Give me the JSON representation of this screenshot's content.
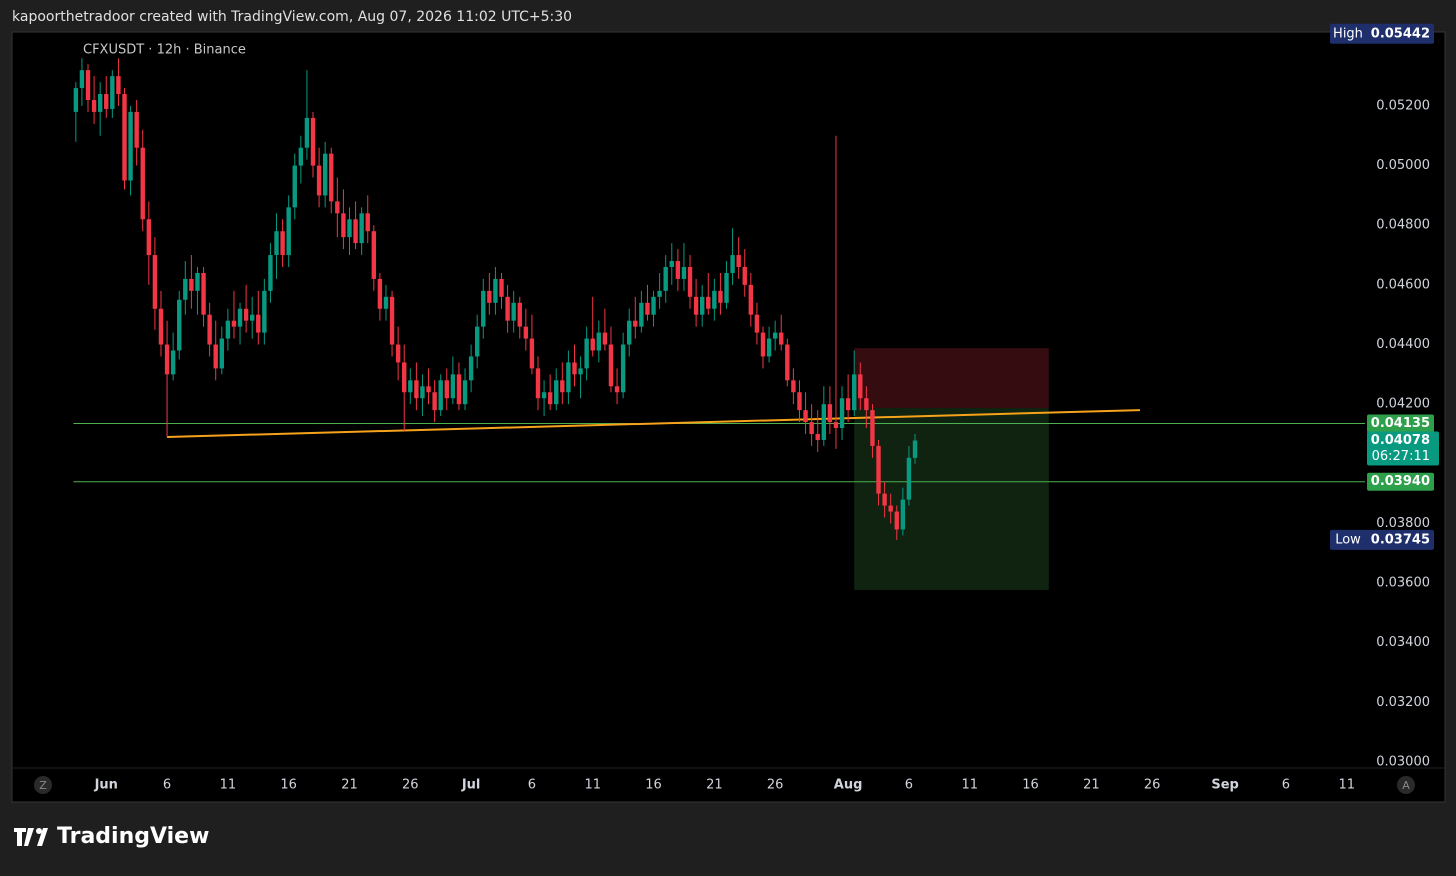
{
  "header": "kapoorthetradoor created with TradingView.com, Aug 07, 2026 11:02 UTC+5:30",
  "footer": "TradingView",
  "chart_data": {
    "type": "candlestick",
    "title": "CFXUSDT · 12h · Binance",
    "up_color": "#089981",
    "down_color": "#f23645",
    "xlim": [
      -10.5,
      212
    ],
    "ylim": [
      0.0298,
      0.05448
    ],
    "xticks": [
      {
        "value": 5,
        "label": "Jun"
      },
      {
        "value": 15,
        "label": "6"
      },
      {
        "value": 25,
        "label": "11"
      },
      {
        "value": 35,
        "label": "16"
      },
      {
        "value": 45,
        "label": "21"
      },
      {
        "value": 55,
        "label": "26"
      },
      {
        "value": 65,
        "label": "Jul"
      },
      {
        "value": 75,
        "label": "6"
      },
      {
        "value": 85,
        "label": "11"
      },
      {
        "value": 95,
        "label": "16"
      },
      {
        "value": 105,
        "label": "21"
      },
      {
        "value": 115,
        "label": "26"
      },
      {
        "value": 127,
        "label": "Aug"
      },
      {
        "value": 137,
        "label": "6"
      },
      {
        "value": 147,
        "label": "11"
      },
      {
        "value": 157,
        "label": "16"
      },
      {
        "value": 167,
        "label": "21"
      },
      {
        "value": 177,
        "label": "26"
      },
      {
        "value": 189,
        "label": "Sep"
      },
      {
        "value": 199,
        "label": "6"
      },
      {
        "value": 209,
        "label": "11"
      }
    ],
    "yticks": [
      {
        "value": 0.03,
        "label": "0.03000"
      },
      {
        "value": 0.032,
        "label": "0.03200"
      },
      {
        "value": 0.034,
        "label": "0.03400"
      },
      {
        "value": 0.036,
        "label": "0.03600"
      },
      {
        "value": 0.038,
        "label": "0.03800"
      },
      {
        "value": 0.042,
        "label": "0.04200"
      },
      {
        "value": 0.044,
        "label": "0.04400"
      },
      {
        "value": 0.046,
        "label": "0.04600"
      },
      {
        "value": 0.048,
        "label": "0.04800"
      },
      {
        "value": 0.05,
        "label": "0.05000"
      },
      {
        "value": 0.052,
        "label": "0.05200"
      }
    ],
    "axis_buttons": [
      "Z",
      "A"
    ],
    "candles": [
      [
        0.0518,
        0.0528,
        0.0508,
        0.0526
      ],
      [
        0.0526,
        0.0536,
        0.052,
        0.0532
      ],
      [
        0.0532,
        0.0534,
        0.0518,
        0.0522
      ],
      [
        0.0522,
        0.053,
        0.0514,
        0.0518
      ],
      [
        0.0518,
        0.0528,
        0.051,
        0.0524
      ],
      [
        0.0524,
        0.053,
        0.0516,
        0.0519
      ],
      [
        0.0519,
        0.0532,
        0.0516,
        0.053
      ],
      [
        0.053,
        0.0536,
        0.052,
        0.0524
      ],
      [
        0.0524,
        0.0526,
        0.0492,
        0.0495
      ],
      [
        0.0495,
        0.052,
        0.049,
        0.0518
      ],
      [
        0.0518,
        0.0522,
        0.05,
        0.0506
      ],
      [
        0.0506,
        0.0512,
        0.0478,
        0.0482
      ],
      [
        0.0482,
        0.0488,
        0.046,
        0.047
      ],
      [
        0.047,
        0.0476,
        0.0445,
        0.0452
      ],
      [
        0.0452,
        0.0458,
        0.0436,
        0.044
      ],
      [
        0.044,
        0.0448,
        0.0409,
        0.043
      ],
      [
        0.043,
        0.0444,
        0.0428,
        0.0438
      ],
      [
        0.0438,
        0.0458,
        0.0435,
        0.0455
      ],
      [
        0.0455,
        0.0468,
        0.045,
        0.0462
      ],
      [
        0.0462,
        0.047,
        0.0452,
        0.0458
      ],
      [
        0.0458,
        0.0466,
        0.045,
        0.0464
      ],
      [
        0.0464,
        0.0466,
        0.0446,
        0.045
      ],
      [
        0.045,
        0.0454,
        0.0436,
        0.044
      ],
      [
        0.044,
        0.0448,
        0.0428,
        0.0432
      ],
      [
        0.0432,
        0.0446,
        0.043,
        0.0442
      ],
      [
        0.0442,
        0.0452,
        0.0438,
        0.0448
      ],
      [
        0.0448,
        0.0458,
        0.0442,
        0.0446
      ],
      [
        0.0446,
        0.0454,
        0.044,
        0.0452
      ],
      [
        0.0452,
        0.046,
        0.0444,
        0.0448
      ],
      [
        0.0448,
        0.0456,
        0.0442,
        0.045
      ],
      [
        0.045,
        0.0458,
        0.044,
        0.0444
      ],
      [
        0.0444,
        0.0462,
        0.044,
        0.0458
      ],
      [
        0.0458,
        0.0474,
        0.0454,
        0.047
      ],
      [
        0.047,
        0.0484,
        0.0462,
        0.0478
      ],
      [
        0.0478,
        0.0482,
        0.0466,
        0.047
      ],
      [
        0.047,
        0.049,
        0.0466,
        0.0486
      ],
      [
        0.0486,
        0.0504,
        0.0482,
        0.05
      ],
      [
        0.05,
        0.051,
        0.0494,
        0.0506
      ],
      [
        0.0506,
        0.0532,
        0.0502,
        0.0516
      ],
      [
        0.0516,
        0.0518,
        0.0496,
        0.05
      ],
      [
        0.05,
        0.0506,
        0.0486,
        0.049
      ],
      [
        0.049,
        0.0508,
        0.0486,
        0.0504
      ],
      [
        0.0504,
        0.0506,
        0.0484,
        0.0488
      ],
      [
        0.0488,
        0.0496,
        0.0476,
        0.0484
      ],
      [
        0.0484,
        0.0492,
        0.0472,
        0.0476
      ],
      [
        0.0476,
        0.0486,
        0.047,
        0.0482
      ],
      [
        0.0482,
        0.0488,
        0.0472,
        0.0474
      ],
      [
        0.0474,
        0.0486,
        0.047,
        0.0484
      ],
      [
        0.0484,
        0.049,
        0.0474,
        0.0478
      ],
      [
        0.0478,
        0.048,
        0.0458,
        0.0462
      ],
      [
        0.0462,
        0.0464,
        0.0448,
        0.0452
      ],
      [
        0.0452,
        0.046,
        0.0448,
        0.0456
      ],
      [
        0.0456,
        0.0458,
        0.0436,
        0.044
      ],
      [
        0.044,
        0.0446,
        0.0428,
        0.0434
      ],
      [
        0.0434,
        0.044,
        0.0411,
        0.0424
      ],
      [
        0.0424,
        0.0432,
        0.042,
        0.0428
      ],
      [
        0.0428,
        0.0434,
        0.0418,
        0.0422
      ],
      [
        0.0422,
        0.043,
        0.0416,
        0.0426
      ],
      [
        0.0426,
        0.0432,
        0.042,
        0.0424
      ],
      [
        0.0424,
        0.0428,
        0.0414,
        0.0418
      ],
      [
        0.0418,
        0.043,
        0.0416,
        0.0428
      ],
      [
        0.0428,
        0.0432,
        0.0418,
        0.0422
      ],
      [
        0.0422,
        0.0436,
        0.042,
        0.043
      ],
      [
        0.043,
        0.0434,
        0.0418,
        0.042
      ],
      [
        0.042,
        0.0432,
        0.0418,
        0.0428
      ],
      [
        0.0428,
        0.044,
        0.0424,
        0.0436
      ],
      [
        0.0436,
        0.045,
        0.0432,
        0.0446
      ],
      [
        0.0446,
        0.0462,
        0.0442,
        0.0458
      ],
      [
        0.0458,
        0.0464,
        0.045,
        0.0454
      ],
      [
        0.0454,
        0.0466,
        0.045,
        0.0462
      ],
      [
        0.0462,
        0.0464,
        0.0452,
        0.0456
      ],
      [
        0.0456,
        0.046,
        0.0444,
        0.0448
      ],
      [
        0.0448,
        0.0458,
        0.0444,
        0.0454
      ],
      [
        0.0454,
        0.0456,
        0.0442,
        0.0446
      ],
      [
        0.0446,
        0.0452,
        0.0438,
        0.0442
      ],
      [
        0.0442,
        0.045,
        0.043,
        0.0432
      ],
      [
        0.0432,
        0.0436,
        0.0418,
        0.0422
      ],
      [
        0.0422,
        0.0428,
        0.0416,
        0.0424
      ],
      [
        0.0424,
        0.043,
        0.0418,
        0.042
      ],
      [
        0.042,
        0.0432,
        0.0418,
        0.0428
      ],
      [
        0.0428,
        0.0434,
        0.042,
        0.0424
      ],
      [
        0.0424,
        0.0438,
        0.042,
        0.0434
      ],
      [
        0.0434,
        0.044,
        0.0426,
        0.043
      ],
      [
        0.043,
        0.0436,
        0.0422,
        0.0432
      ],
      [
        0.0432,
        0.0446,
        0.0428,
        0.0442
      ],
      [
        0.0442,
        0.0456,
        0.0436,
        0.0438
      ],
      [
        0.0438,
        0.0448,
        0.0434,
        0.0444
      ],
      [
        0.0444,
        0.0452,
        0.0438,
        0.044
      ],
      [
        0.044,
        0.0446,
        0.0424,
        0.0426
      ],
      [
        0.0426,
        0.0432,
        0.042,
        0.0424
      ],
      [
        0.0424,
        0.0444,
        0.0422,
        0.044
      ],
      [
        0.044,
        0.0452,
        0.0436,
        0.0448
      ],
      [
        0.0448,
        0.0456,
        0.0442,
        0.0446
      ],
      [
        0.0446,
        0.0458,
        0.0444,
        0.0454
      ],
      [
        0.0454,
        0.046,
        0.0448,
        0.045
      ],
      [
        0.045,
        0.0458,
        0.0446,
        0.0456
      ],
      [
        0.0456,
        0.0464,
        0.0452,
        0.0458
      ],
      [
        0.0458,
        0.047,
        0.0454,
        0.0466
      ],
      [
        0.0466,
        0.0474,
        0.046,
        0.0468
      ],
      [
        0.0468,
        0.0472,
        0.0458,
        0.0462
      ],
      [
        0.0462,
        0.0474,
        0.0458,
        0.0466
      ],
      [
        0.0466,
        0.047,
        0.0452,
        0.0456
      ],
      [
        0.0456,
        0.0462,
        0.0446,
        0.045
      ],
      [
        0.045,
        0.046,
        0.0446,
        0.0456
      ],
      [
        0.0456,
        0.0464,
        0.045,
        0.0452
      ],
      [
        0.0452,
        0.0462,
        0.0448,
        0.0458
      ],
      [
        0.0458,
        0.0464,
        0.045,
        0.0454
      ],
      [
        0.0454,
        0.0468,
        0.0452,
        0.0464
      ],
      [
        0.0464,
        0.0479,
        0.046,
        0.047
      ],
      [
        0.047,
        0.0476,
        0.0462,
        0.0466
      ],
      [
        0.0466,
        0.0472,
        0.0456,
        0.046
      ],
      [
        0.046,
        0.0464,
        0.0446,
        0.045
      ],
      [
        0.045,
        0.0454,
        0.044,
        0.0444
      ],
      [
        0.0444,
        0.0446,
        0.0432,
        0.0436
      ],
      [
        0.0436,
        0.0446,
        0.0434,
        0.0442
      ],
      [
        0.0442,
        0.0448,
        0.0438,
        0.0444
      ],
      [
        0.0444,
        0.045,
        0.0438,
        0.044
      ],
      [
        0.044,
        0.0442,
        0.0426,
        0.0428
      ],
      [
        0.0428,
        0.0432,
        0.042,
        0.0424
      ],
      [
        0.0424,
        0.0428,
        0.0414,
        0.0418
      ],
      [
        0.0418,
        0.0424,
        0.041,
        0.0414
      ],
      [
        0.0414,
        0.042,
        0.0406,
        0.041
      ],
      [
        0.041,
        0.0418,
        0.0404,
        0.0408
      ],
      [
        0.0408,
        0.0426,
        0.0406,
        0.042
      ],
      [
        0.042,
        0.0426,
        0.041,
        0.0414
      ],
      [
        0.0414,
        0.051,
        0.0405,
        0.0412
      ],
      [
        0.0412,
        0.0426,
        0.0408,
        0.0422
      ],
      [
        0.0422,
        0.043,
        0.0414,
        0.0418
      ],
      [
        0.0418,
        0.0438,
        0.0416,
        0.043
      ],
      [
        0.043,
        0.0434,
        0.0418,
        0.0422
      ],
      [
        0.0422,
        0.0426,
        0.0412,
        0.0418
      ],
      [
        0.0418,
        0.042,
        0.0402,
        0.0406
      ],
      [
        0.0406,
        0.0408,
        0.0386,
        0.039
      ],
      [
        0.039,
        0.0394,
        0.0382,
        0.0386
      ],
      [
        0.0386,
        0.039,
        0.038,
        0.0384
      ],
      [
        0.0384,
        0.0386,
        0.03745,
        0.0378
      ],
      [
        0.0378,
        0.0392,
        0.0376,
        0.0388
      ],
      [
        0.0388,
        0.0406,
        0.0386,
        0.0402
      ],
      [
        0.0402,
        0.041,
        0.04,
        0.04078
      ]
    ],
    "trendline": {
      "x": [
        15,
        175
      ],
      "y": [
        0.0409,
        0.0418
      ],
      "color": "#f7a21b"
    },
    "price_lines": [
      {
        "value": 0.04135,
        "label": "0.04135"
      },
      {
        "value": 0.0394,
        "label": "0.03940"
      }
    ],
    "line_color": "#4caf50",
    "position": {
      "start": 128,
      "end": 160,
      "entry": 0.04187,
      "stop": 0.04388,
      "target": 0.03577
    },
    "last_price": {
      "value": 0.04078,
      "label": "0.04078",
      "countdown": "06:27:11"
    },
    "extremes": [
      {
        "name": "High",
        "value": 0.05442,
        "label": "0.05442"
      },
      {
        "name": "Low",
        "value": 0.03745,
        "label": "0.03745"
      }
    ]
  }
}
